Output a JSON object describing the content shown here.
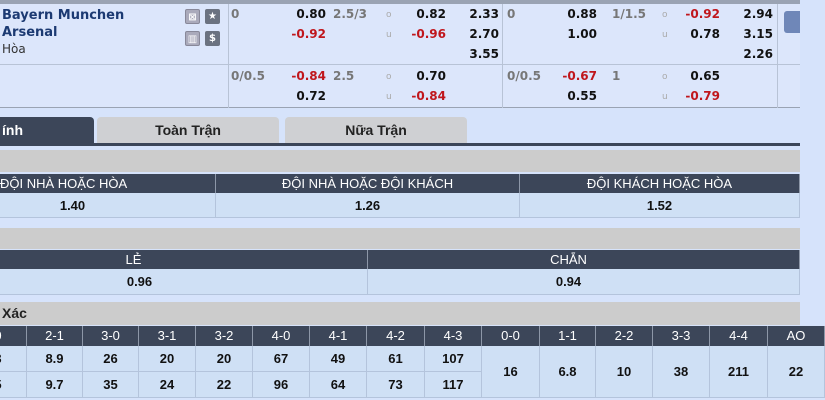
{
  "match": {
    "home": "Bayern Munchen",
    "away": "Arsenal",
    "draw": "Hòa"
  },
  "icons": [
    "cross-grid-icon",
    "star-icon",
    "bar-chart-icon",
    "dollar-icon"
  ],
  "odds_row1": {
    "hcap": "0",
    "hcap_home": "0.80",
    "hcap_away": "-0.92",
    "ou_line": "2.5/3",
    "o": "o",
    "u": "u",
    "ou_over": "0.82",
    "ou_under": "-0.96",
    "x12": [
      "2.33",
      "2.70",
      "3.55"
    ],
    "h1_hcap": "0",
    "h1_home": "0.88",
    "h1_away": "1.00",
    "h1_ou_line": "1/1.5",
    "h1_over": "-0.92",
    "h1_under": "0.78",
    "h1_x12": [
      "2.94",
      "3.15",
      "2.26"
    ]
  },
  "odds_row2": {
    "hcap": "0/0.5",
    "hcap_home": "-0.84",
    "hcap_away": "0.72",
    "ou_line": "2.5",
    "ou_over": "0.70",
    "ou_under": "-0.84",
    "h1_hcap": "0/0.5",
    "h1_home": "-0.67",
    "h1_away": "0.55",
    "h1_ou_line": "1",
    "h1_over": "0.65",
    "h1_under": "-0.79"
  },
  "tabs": [
    "ính",
    "Toàn Trận",
    "Nữa Trận"
  ],
  "double_chance": {
    "headers": [
      "ĐỘI NHÀ HOẶC HÒA",
      "ĐỘI NHÀ HOẶC ĐỘI KHÁCH",
      "ĐỘI KHÁCH HOẶC HÒA"
    ],
    "values": [
      "1.40",
      "1.26",
      "1.52"
    ]
  },
  "odd_even": {
    "headers": [
      "LẺ",
      "CHẴN"
    ],
    "values": [
      "0.96",
      "0.94"
    ]
  },
  "correct_score": {
    "title": "Xác",
    "headers": [
      "0",
      "2-1",
      "3-0",
      "3-1",
      "3-2",
      "4-0",
      "4-1",
      "4-2",
      "4-3",
      "0-0",
      "1-1",
      "2-2",
      "3-3",
      "4-4",
      "AO"
    ],
    "home": [
      "3",
      "8.9",
      "26",
      "20",
      "20",
      "67",
      "49",
      "61",
      "107"
    ],
    "away": [
      "5",
      "9.7",
      "35",
      "24",
      "22",
      "96",
      "64",
      "73",
      "117"
    ],
    "draws": [
      "16",
      "6.8",
      "10",
      "38",
      "211",
      "22"
    ]
  }
}
